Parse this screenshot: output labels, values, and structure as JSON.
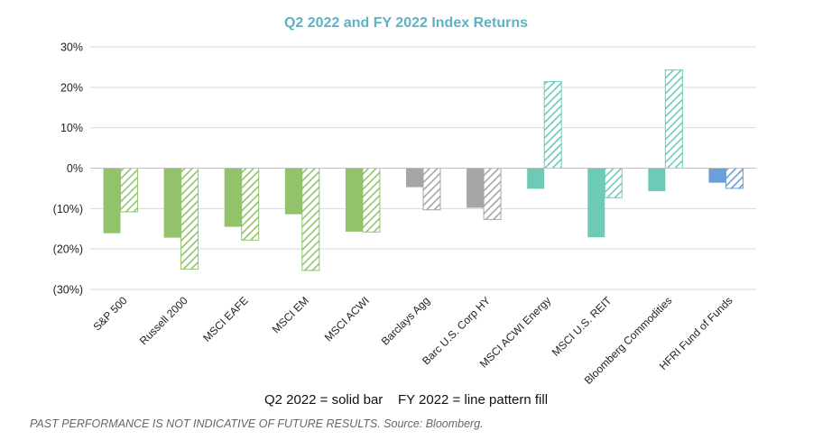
{
  "chart_data": {
    "type": "bar",
    "title": "Q2 2022 and FY 2022 Index Returns",
    "title_color": "#5bb3c4",
    "categories": [
      "S&P 500",
      "Russell 2000",
      "MSCI EAFE",
      "MSCI EM",
      "MSCI ACWI",
      "Barclays Agg",
      "Barc U.S. Corp HY",
      "MSCI ACWI Energy",
      "MSCI U.S. REIT",
      "Bloomberg Commodities",
      "HFRI Fund of Funds"
    ],
    "category_colors": [
      "#92c36b",
      "#92c36b",
      "#92c36b",
      "#92c36b",
      "#92c36b",
      "#a6a6a6",
      "#a6a6a6",
      "#6ccab7",
      "#6ccab7",
      "#6ccab7",
      "#6a9fd8"
    ],
    "series": [
      {
        "name": "Q2 2022",
        "style": "solid",
        "values": [
          -16.1,
          -17.2,
          -14.5,
          -11.4,
          -15.7,
          -4.7,
          -9.8,
          -5.1,
          -17.1,
          -5.7,
          -3.6
        ]
      },
      {
        "name": "FY 2022",
        "style": "line pattern fill",
        "values": [
          -10.8,
          -25.0,
          -17.8,
          -25.3,
          -15.8,
          -10.3,
          -12.7,
          21.4,
          -7.3,
          24.3,
          -5.0
        ]
      }
    ],
    "ylim": [
      -30,
      30
    ],
    "yticks": [
      30,
      20,
      10,
      0,
      -10,
      -20,
      -30
    ],
    "ytick_labels": [
      "30%",
      "20%",
      "10%",
      "0%",
      "(10%)",
      "(20%)",
      "(30%)"
    ],
    "grid": true,
    "legend_note": "Q2 2022 = solid bar    FY 2022 = line pattern fill"
  },
  "footnote": "PAST PERFORMANCE IS NOT INDICATIVE OF FUTURE RESULTS. Source: Bloomberg."
}
